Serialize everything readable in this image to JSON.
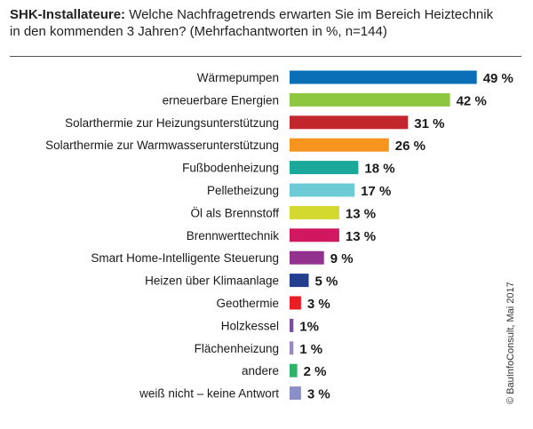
{
  "header": {
    "title_bold": "SHK-Installateure:",
    "title_rest": " Welche Nachfragetrends erwarten Sie im Bereich Heiztechnik",
    "title_line2": "in den kommenden 3 Jahren? (Mehrfachantworten in %, n=144)"
  },
  "credit": "© BauInfoConsult, Mai 2017",
  "chart_data": {
    "type": "bar",
    "orientation": "horizontal",
    "title": "SHK-Installateure: Welche Nachfragetrends erwarten Sie im Bereich Heiztechnik in den kommenden 3 Jahren? (Mehrfachantworten in %, n=144)",
    "categories": [
      "Wärmepumpen",
      "erneuerbare Energien",
      "Solarthermie zur Heizungsunterstützung",
      "Solarthermie zur Warmwasserunterstützung",
      "Fußbodenheizung",
      "Pelletheizung",
      "Öl als Brennstoff",
      "Brennwerttechnik",
      "Smart Home-Intelligente Steuerung",
      "Heizen über Klimaanlage",
      "Geothermie",
      "Holzkessel",
      "Flächenheizung",
      "andere",
      "weiß nicht – keine Antwort"
    ],
    "values": [
      49,
      42,
      31,
      26,
      18,
      17,
      13,
      13,
      9,
      5,
      3,
      1,
      1,
      2,
      3
    ],
    "value_labels": [
      "49 %",
      "42 %",
      "31 %",
      "26 %",
      "18 %",
      "17 %",
      "13 %",
      "13 %",
      "9 %",
      "5 %",
      "3 %",
      "1%",
      "1 %",
      "2 %",
      "3 %"
    ],
    "colors": [
      "#0a6fb7",
      "#8dc63f",
      "#c1272d",
      "#f7941d",
      "#1aa89a",
      "#6ccbd6",
      "#d4d92f",
      "#d1175f",
      "#93328e",
      "#233d8f",
      "#ec1c24",
      "#7b4f9e",
      "#9c88c0",
      "#2fb36b",
      "#8b8fc8"
    ],
    "xlim": [
      0,
      50
    ],
    "grid": false,
    "legend": "none"
  }
}
